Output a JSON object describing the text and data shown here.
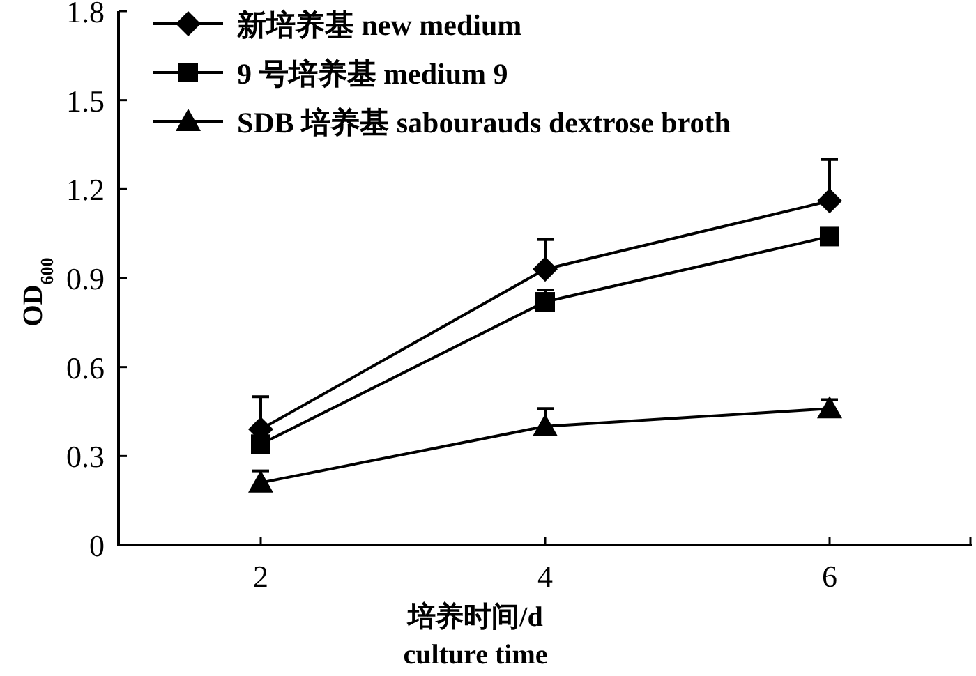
{
  "chart_data": {
    "type": "line",
    "xlabel": "培养时间/d\nculture time",
    "ylabel": "OD$_{600}$",
    "x": [
      2,
      4,
      6
    ],
    "xlim": [
      1,
      7
    ],
    "xticks": [
      2,
      4,
      6
    ],
    "ylim": [
      0,
      1.8
    ],
    "yticks": [
      0,
      0.3,
      0.6,
      0.9,
      1.2,
      1.5,
      1.8
    ],
    "legend": "top left",
    "grid": false,
    "line_style": "solid",
    "series": [
      {
        "name": "新培养基 new medium",
        "color": "#000000",
        "marker": "diamond",
        "values": [
          0.39,
          0.93,
          1.16
        ],
        "errors": [
          [
            0.39,
            0.5
          ],
          [
            0.93,
            1.03
          ],
          [
            1.16,
            1.3
          ]
        ]
      },
      {
        "name": "9 号培养基 medium 9",
        "color": "#000000",
        "marker": "square",
        "values": [
          0.34,
          0.82,
          1.04
        ],
        "errors": [
          null,
          [
            0.82,
            0.86
          ],
          null
        ]
      },
      {
        "name": "SDB 培养基 sabourauds dextrose broth",
        "color": "#000000",
        "marker": "triangle",
        "values": [
          0.21,
          0.4,
          0.46
        ],
        "errors": [
          [
            0.21,
            0.25
          ],
          [
            0.4,
            0.46
          ],
          [
            0.46,
            0.49
          ]
        ]
      }
    ]
  }
}
